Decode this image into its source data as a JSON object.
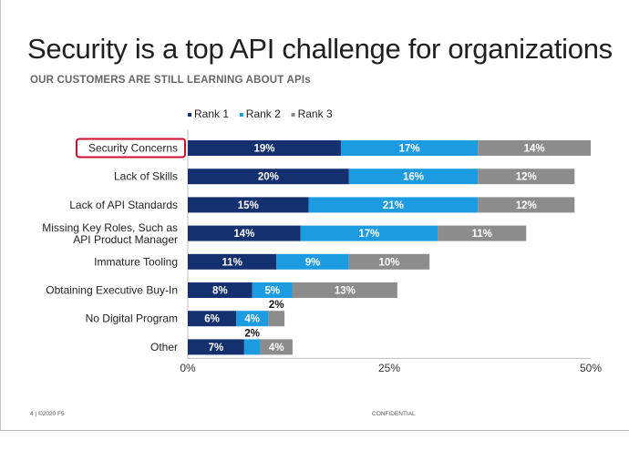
{
  "slide": {
    "title": "Security is a top API challenge for organizations",
    "subtitle": "OUR CUSTOMERS ARE STILL LEARNING ABOUT APIs",
    "footer_left": "4 | ©2020 F5",
    "footer_center": "CONFIDENTIAL"
  },
  "colors": {
    "rank1": "#14306e",
    "rank2": "#1c9be0",
    "rank3": "#8c8c8c",
    "highlight": "#c8102e"
  },
  "chart_data": {
    "type": "bar",
    "orientation": "horizontal",
    "stacked": true,
    "categories": [
      "Security Concerns",
      "Lack of Skills",
      "Lack of API Standards",
      "Missing Key Roles, Such as API Product Manager",
      "Immature Tooling",
      "Obtaining Executive Buy-In",
      "No Digital Program",
      "Other"
    ],
    "category_lines": [
      [
        "Security Concerns"
      ],
      [
        "Lack of Skills"
      ],
      [
        "Lack of API Standards"
      ],
      [
        "Missing Key Roles, Such as",
        "API Product Manager"
      ],
      [
        "Immature Tooling"
      ],
      [
        "Obtaining Executive Buy-In"
      ],
      [
        "No Digital Program"
      ],
      [
        "Other"
      ]
    ],
    "series": [
      {
        "name": "Rank 1",
        "values": [
          19,
          20,
          15,
          14,
          11,
          8,
          6,
          7
        ]
      },
      {
        "name": "Rank 2",
        "values": [
          17,
          16,
          21,
          17,
          9,
          5,
          4,
          2
        ]
      },
      {
        "name": "Rank 3",
        "values": [
          14,
          12,
          12,
          11,
          10,
          13,
          2,
          4
        ]
      }
    ],
    "data_labels": [
      [
        "19%",
        "20%",
        "15%",
        "14%",
        "11%",
        "8%",
        "6%",
        "7%"
      ],
      [
        "17%",
        "16%",
        "21%",
        "17%",
        "9%",
        "5%",
        "4%",
        "2%"
      ],
      [
        "14%",
        "12%",
        "12%",
        "11%",
        "10%",
        "13%",
        "2%",
        "4%"
      ]
    ],
    "x_ticks": [
      0,
      25,
      50
    ],
    "x_tick_labels": [
      "0%",
      "25%",
      "50%"
    ],
    "xlim": [
      0,
      50
    ],
    "legend_position": "top",
    "highlighted_category": "Security Concerns"
  }
}
